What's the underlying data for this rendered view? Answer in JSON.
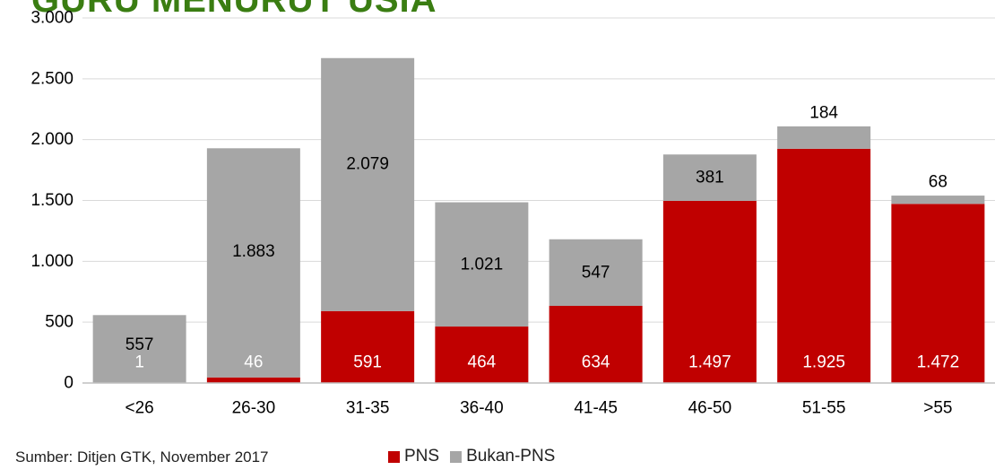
{
  "title": "GURU MENURUT USIA",
  "source": "Sumber: Ditjen GTK, November 2017",
  "colors": {
    "title": "#3a7d12",
    "pns": "#c00000",
    "bukan_pns": "#a6a6a6",
    "grid": "#d9d9d9",
    "axis": "#bfbfbf",
    "text": "#000000"
  },
  "chart_data": {
    "type": "bar",
    "stacked": true,
    "categories": [
      "<26",
      "26-30",
      "31-35",
      "36-40",
      "41-45",
      "46-50",
      "51-55",
      ">55"
    ],
    "series": [
      {
        "name": "PNS",
        "values": [
          1,
          46,
          591,
          464,
          634,
          1497,
          1925,
          1472
        ],
        "labels": [
          "1",
          "46",
          "591",
          "464",
          "634",
          "1.497",
          "1.925",
          "1.472"
        ]
      },
      {
        "name": "Bukan-PNS",
        "values": [
          557,
          1883,
          2079,
          1021,
          547,
          381,
          184,
          68
        ],
        "labels": [
          "557",
          "1.883",
          "2.079",
          "1.021",
          "547",
          "381",
          "184",
          "68"
        ]
      }
    ],
    "yticks": [
      0,
      500,
      1000,
      1500,
      2000,
      2500,
      3000
    ],
    "ytick_labels": [
      "0",
      "500",
      "1.000",
      "1.500",
      "2.000",
      "2.500",
      "3.000"
    ],
    "ylim": [
      0,
      3000
    ],
    "grid": true,
    "legend_position": "bottom"
  }
}
